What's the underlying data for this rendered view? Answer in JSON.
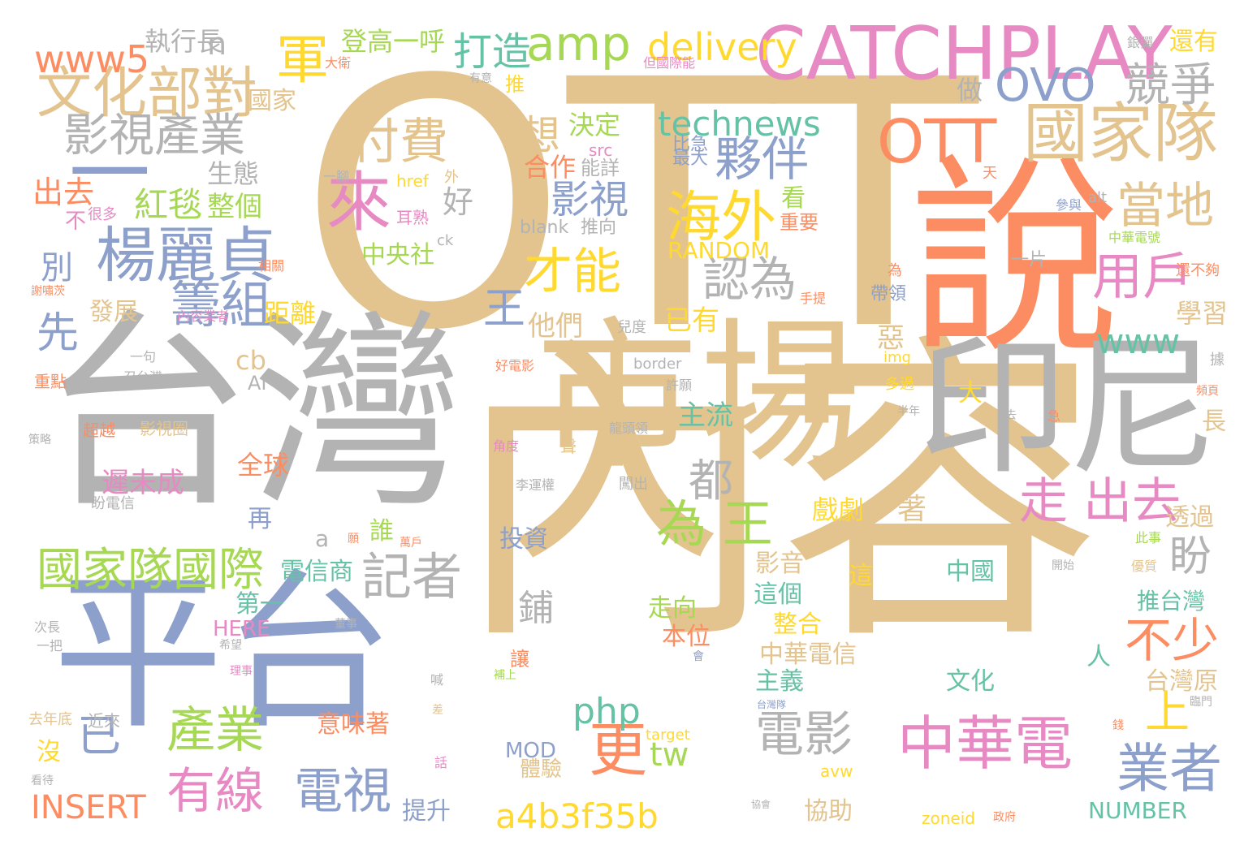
{
  "palette": {
    "tan": "#e3c48f",
    "gray": "#b3b3b3",
    "blue": "#8da0cb",
    "orange": "#fc8d62",
    "green": "#a6d854",
    "pink": "#e78ac3",
    "yellow": "#ffd92f",
    "teal": "#66c2a5"
  },
  "words": [
    {
      "text": "OTT",
      "color": "tan"
    },
    {
      "text": "內容",
      "color": "tan"
    },
    {
      "text": "台灣",
      "color": "gray"
    },
    {
      "text": "市場",
      "color": "tan"
    },
    {
      "text": "平台",
      "color": "blue"
    },
    {
      "text": "說",
      "color": "orange"
    },
    {
      "text": "印尼",
      "color": "gray"
    },
    {
      "text": "CATCHPLAY",
      "color": "pink"
    },
    {
      "text": "國家隊",
      "color": "tan"
    },
    {
      "text": "OTT",
      "color": "orange"
    },
    {
      "text": "楊麗貞",
      "color": "blue"
    },
    {
      "text": "來",
      "color": "pink"
    },
    {
      "text": "一",
      "color": "blue"
    },
    {
      "text": "海外",
      "color": "yellow"
    },
    {
      "text": "文化部對",
      "color": "tan"
    },
    {
      "text": "影視產業",
      "color": "gray"
    },
    {
      "text": "夥伴",
      "color": "blue"
    },
    {
      "text": "amp",
      "color": "green"
    },
    {
      "text": "OVO",
      "color": "blue"
    },
    {
      "text": "競爭",
      "color": "gray"
    },
    {
      "text": "當地",
      "color": "tan"
    },
    {
      "text": "用戶",
      "color": "pink"
    },
    {
      "text": "付費",
      "color": "tan"
    },
    {
      "text": "軍",
      "color": "yellow"
    },
    {
      "text": "為 王",
      "color": "green"
    },
    {
      "text": "走 出去",
      "color": "pink"
    },
    {
      "text": "國家隊國際",
      "color": "green"
    },
    {
      "text": "記者",
      "color": "gray"
    },
    {
      "text": "中華電",
      "color": "pink"
    },
    {
      "text": "業者",
      "color": "blue"
    },
    {
      "text": "更",
      "color": "orange"
    },
    {
      "text": "有線",
      "color": "pink"
    },
    {
      "text": "電視",
      "color": "blue"
    },
    {
      "text": "產業",
      "color": "green"
    },
    {
      "text": "電影",
      "color": "gray"
    },
    {
      "text": "不少",
      "color": "orange"
    },
    {
      "text": "上",
      "color": "yellow"
    },
    {
      "text": "籌組",
      "color": "blue"
    },
    {
      "text": "才能",
      "color": "yellow"
    },
    {
      "text": "認為",
      "color": "gray"
    },
    {
      "text": "delivery",
      "color": "yellow"
    },
    {
      "text": "technews",
      "color": "teal"
    },
    {
      "text": "www5",
      "color": "orange"
    },
    {
      "text": "影視",
      "color": "blue"
    },
    {
      "text": "想",
      "color": "tan"
    },
    {
      "text": "打造",
      "color": "teal"
    },
    {
      "text": "先",
      "color": "blue"
    },
    {
      "text": "王",
      "color": "blue"
    },
    {
      "text": "已",
      "color": "blue"
    },
    {
      "text": "都",
      "color": "gray"
    },
    {
      "text": "盼",
      "color": "gray"
    },
    {
      "text": "a4b3f35b",
      "color": "yellow"
    },
    {
      "text": "INSERT",
      "color": "orange"
    },
    {
      "text": "php",
      "color": "teal"
    },
    {
      "text": "www",
      "color": "teal"
    },
    {
      "text": "tw",
      "color": "green"
    },
    {
      "text": "紅毯",
      "color": "green"
    },
    {
      "text": "執行長",
      "color": "gray"
    },
    {
      "text": "n",
      "color": "gray"
    },
    {
      "text": "登高一呼",
      "color": "green"
    },
    {
      "text": "出去",
      "color": "orange"
    },
    {
      "text": "生態",
      "color": "gray"
    },
    {
      "text": "整個",
      "color": "green"
    },
    {
      "text": "好",
      "color": "gray"
    },
    {
      "text": "決定",
      "color": "green"
    },
    {
      "text": "合作",
      "color": "orange"
    },
    {
      "text": "能詳",
      "color": "gray"
    },
    {
      "text": "中央社",
      "color": "green"
    },
    {
      "text": "RANDOM",
      "color": "yellow"
    },
    {
      "text": "blank",
      "color": "gray"
    },
    {
      "text": "推向",
      "color": "gray"
    },
    {
      "text": "看",
      "color": "green"
    },
    {
      "text": "重要",
      "color": "orange"
    },
    {
      "text": "距離",
      "color": "yellow"
    },
    {
      "text": "發展",
      "color": "tan"
    },
    {
      "text": "別",
      "color": "blue"
    },
    {
      "text": "國家",
      "color": "tan"
    },
    {
      "text": "做",
      "color": "gray"
    },
    {
      "text": "推",
      "color": "yellow"
    },
    {
      "text": "最大",
      "color": "blue"
    },
    {
      "text": "比急",
      "color": "blue"
    },
    {
      "text": "還有",
      "color": "yellow"
    },
    {
      "text": "一片",
      "color": "gray"
    },
    {
      "text": "學習",
      "color": "tan"
    },
    {
      "text": "帶領",
      "color": "blue"
    },
    {
      "text": "已有",
      "color": "yellow"
    },
    {
      "text": "他們",
      "color": "tan"
    },
    {
      "text": "cb",
      "color": "tan"
    },
    {
      "text": "AI",
      "color": "gray"
    },
    {
      "text": "惡",
      "color": "tan"
    },
    {
      "text": "主流",
      "color": "teal"
    },
    {
      "text": "長",
      "color": "tan"
    },
    {
      "text": "大",
      "color": "yellow"
    },
    {
      "text": "全球",
      "color": "orange"
    },
    {
      "text": "遲未成",
      "color": "pink"
    },
    {
      "text": "再",
      "color": "blue"
    },
    {
      "text": "戲劇",
      "color": "yellow"
    },
    {
      "text": "著",
      "color": "tan"
    },
    {
      "text": "誰",
      "color": "green"
    },
    {
      "text": "投資",
      "color": "blue"
    },
    {
      "text": "透過",
      "color": "tan"
    },
    {
      "text": "影音",
      "color": "tan"
    },
    {
      "text": "電信商",
      "color": "teal"
    },
    {
      "text": "這個",
      "color": "teal"
    },
    {
      "text": "中國",
      "color": "teal"
    },
    {
      "text": "推台灣",
      "color": "teal"
    },
    {
      "text": "鋪",
      "color": "gray"
    },
    {
      "text": "走向",
      "color": "green"
    },
    {
      "text": "第一",
      "color": "teal"
    },
    {
      "text": "整合",
      "color": "yellow"
    },
    {
      "text": "本位",
      "color": "orange"
    },
    {
      "text": "中華電信",
      "color": "tan"
    },
    {
      "text": "主義",
      "color": "teal"
    },
    {
      "text": "文化",
      "color": "teal"
    },
    {
      "text": "台灣原",
      "color": "tan"
    },
    {
      "text": "人",
      "color": "teal"
    },
    {
      "text": "HERE",
      "color": "pink"
    },
    {
      "text": "意味著",
      "color": "orange"
    },
    {
      "text": "MOD",
      "color": "blue"
    },
    {
      "text": "體驗",
      "color": "tan"
    },
    {
      "text": "沒",
      "color": "yellow"
    },
    {
      "text": "提升",
      "color": "blue"
    },
    {
      "text": "協助",
      "color": "tan"
    },
    {
      "text": "NUMBER",
      "color": "teal"
    },
    {
      "text": "a",
      "color": "gray"
    },
    {
      "text": "這",
      "color": "yellow"
    },
    {
      "text": "讓",
      "color": "orange"
    },
    {
      "text": "src",
      "color": "pink"
    },
    {
      "text": "href",
      "color": "yellow"
    },
    {
      "text": "外",
      "color": "tan"
    },
    {
      "text": "耳熟",
      "color": "pink"
    },
    {
      "text": "ck",
      "color": "gray"
    },
    {
      "text": "alt",
      "color": "gray"
    },
    {
      "text": "border",
      "color": "gray"
    },
    {
      "text": "img",
      "color": "yellow"
    },
    {
      "text": "target",
      "color": "yellow"
    },
    {
      "text": "zoneid",
      "color": "yellow"
    },
    {
      "text": "avw",
      "color": "yellow"
    },
    {
      "text": "大衛",
      "color": "orange"
    },
    {
      "text": "但國際能",
      "color": "pink"
    },
    {
      "text": "有意",
      "color": "gray"
    },
    {
      "text": "銀彈",
      "color": "gray"
    },
    {
      "text": "天",
      "color": "orange"
    },
    {
      "text": "參與",
      "color": "blue"
    },
    {
      "text": "中華電號",
      "color": "green"
    },
    {
      "text": "為",
      "color": "orange"
    },
    {
      "text": "還不夠",
      "color": "orange"
    },
    {
      "text": "手提",
      "color": "orange"
    },
    {
      "text": "一腳",
      "color": "gray"
    },
    {
      "text": "不",
      "color": "pink"
    },
    {
      "text": "很多",
      "color": "pink"
    },
    {
      "text": "相關",
      "color": "orange"
    },
    {
      "text": "謝嘯茨",
      "color": "orange"
    },
    {
      "text": "內容業者",
      "color": "pink"
    },
    {
      "text": "兒度",
      "color": "gray"
    },
    {
      "text": "一句",
      "color": "gray"
    },
    {
      "text": "召台灣",
      "color": "gray"
    },
    {
      "text": "重點",
      "color": "orange"
    },
    {
      "text": "許願",
      "color": "gray"
    },
    {
      "text": "好電影",
      "color": "orange"
    },
    {
      "text": "超越",
      "color": "orange"
    },
    {
      "text": "影視圈",
      "color": "tan"
    },
    {
      "text": "龍頭領",
      "color": "gray"
    },
    {
      "text": "多過",
      "color": "yellow"
    },
    {
      "text": "半年",
      "color": "gray"
    },
    {
      "text": "去",
      "color": "gray"
    },
    {
      "text": "急",
      "color": "orange"
    },
    {
      "text": "據",
      "color": "gray"
    },
    {
      "text": "頻頁",
      "color": "orange"
    },
    {
      "text": "策略",
      "color": "gray"
    },
    {
      "text": "角度",
      "color": "pink"
    },
    {
      "text": "聲",
      "color": "tan"
    },
    {
      "text": "盼電信",
      "color": "gray"
    },
    {
      "text": "李運權",
      "color": "gray"
    },
    {
      "text": "闖出",
      "color": "gray"
    },
    {
      "text": "願",
      "color": "orange"
    },
    {
      "text": "萬戶",
      "color": "orange"
    },
    {
      "text": "此事",
      "color": "green"
    },
    {
      "text": "開始",
      "color": "gray"
    },
    {
      "text": "優質",
      "color": "tan"
    },
    {
      "text": "次長",
      "color": "gray"
    },
    {
      "text": "一把",
      "color": "gray"
    },
    {
      "text": "董事",
      "color": "gray"
    },
    {
      "text": "希望",
      "color": "gray"
    },
    {
      "text": "理事",
      "color": "pink"
    },
    {
      "text": "補上",
      "color": "green"
    },
    {
      "text": "會",
      "color": "blue"
    },
    {
      "text": "喊",
      "color": "gray"
    },
    {
      "text": "臨門",
      "color": "gray"
    },
    {
      "text": "台灣隊",
      "color": "blue"
    },
    {
      "text": "去年底",
      "color": "tan"
    },
    {
      "text": "近來",
      "color": "gray"
    },
    {
      "text": "差",
      "color": "tan"
    },
    {
      "text": "錢",
      "color": "orange"
    },
    {
      "text": "話",
      "color": "pink"
    },
    {
      "text": "看待",
      "color": "gray"
    },
    {
      "text": "協會",
      "color": "gray"
    },
    {
      "text": "政府",
      "color": "orange"
    }
  ]
}
